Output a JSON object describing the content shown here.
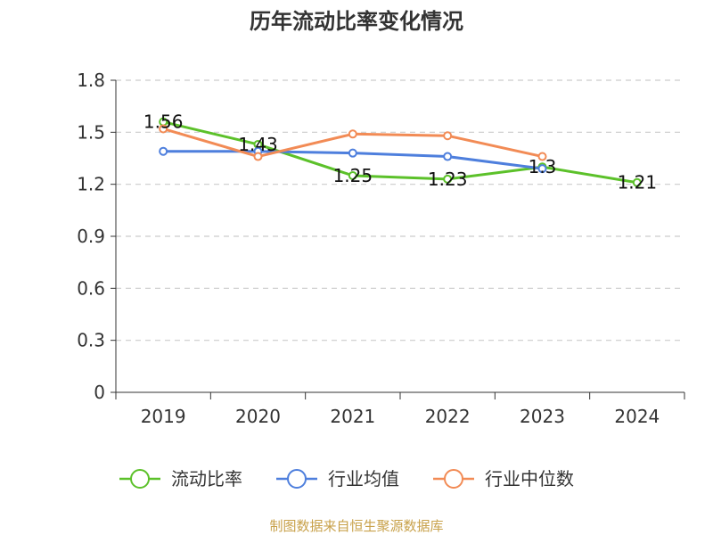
{
  "chart_data": {
    "type": "line",
    "title": "历年流动比率变化情况",
    "categories": [
      "2019",
      "2020",
      "2021",
      "2022",
      "2023",
      "2024"
    ],
    "ylim": [
      0,
      1.8
    ],
    "yticks": [
      "0",
      "0.3",
      "0.6",
      "0.9",
      "1.2",
      "1.5",
      "1.8"
    ],
    "grid": true,
    "legend_position": "bottom",
    "series": [
      {
        "name": "流动比率",
        "color": "#5cc12a",
        "values": [
          1.56,
          1.43,
          1.25,
          1.23,
          1.3,
          1.21
        ],
        "labels": [
          "1.56",
          "1.43",
          "1.25",
          "1.23",
          "1.3",
          "1.21"
        ]
      },
      {
        "name": "行业均值",
        "color": "#4e7fdd",
        "values": [
          1.39,
          1.39,
          1.38,
          1.36,
          1.29,
          null
        ]
      },
      {
        "name": "行业中位数",
        "color": "#f28b55",
        "values": [
          1.52,
          1.36,
          1.49,
          1.48,
          1.36,
          null
        ]
      }
    ]
  },
  "footer": {
    "source": "制图数据来自恒生聚源数据库"
  }
}
